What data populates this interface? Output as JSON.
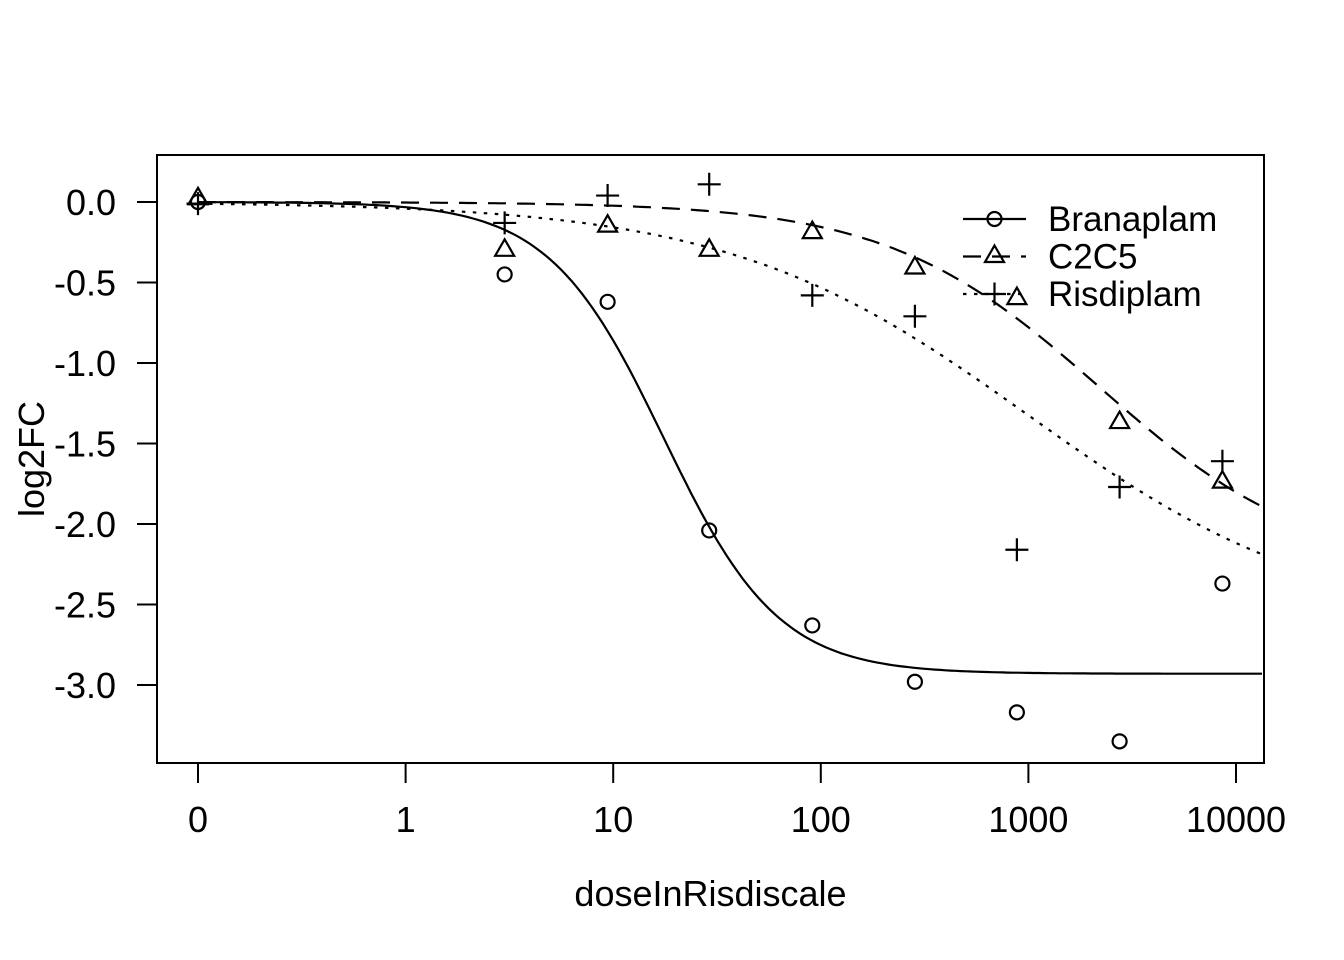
{
  "chart_data": {
    "type": "scatter",
    "title": "",
    "xlabel": "doseInRisdiscale",
    "ylabel": "log2FC",
    "x_scale": "log10 (zero plotted one decade left of 1)",
    "grid": "off",
    "x_ticks": {
      "labels": [
        "0",
        "1",
        "10",
        "100",
        "1000",
        "10000"
      ],
      "doses": [
        0,
        1,
        10,
        100,
        1000,
        10000
      ]
    },
    "y_ticks": {
      "labels": [
        "0.0",
        "-0.5",
        "-1.0",
        "-1.5",
        "-2.0",
        "-2.5",
        "-3.0"
      ],
      "values": [
        0,
        -0.5,
        -1.0,
        -1.5,
        -2.0,
        -2.5,
        -3.0
      ]
    },
    "ylim": [
      -3.48,
      0.29
    ],
    "xlim_log_positions": [
      -0.2,
      5.135
    ],
    "doses": [
      0,
      3,
      9.4,
      29,
      91,
      284,
      880,
      2750,
      8600
    ],
    "series": [
      {
        "name": "Branaplam",
        "marker": "circle",
        "line": "solid",
        "values": [
          0.0,
          -0.45,
          -0.62,
          -2.04,
          -2.63,
          -2.98,
          -3.17,
          -3.35,
          -2.37
        ],
        "fit": {
          "model": "4PL",
          "top": 0,
          "bottom": -2.93,
          "ec50": 17.5,
          "hill": 1.57
        }
      },
      {
        "name": "C2C5",
        "marker": "triangle",
        "line": "dashed",
        "values": [
          0.02,
          -0.3,
          -0.15,
          -0.3,
          -0.19,
          -0.41,
          -0.6,
          -1.37,
          -1.74
        ],
        "fit": {
          "model": "4PL",
          "top": 0,
          "bottom": -2.3,
          "ec50": 2200,
          "hill": 0.85
        }
      },
      {
        "name": "Risdiplam",
        "marker": "plus",
        "line": "dotted",
        "values": [
          -0.01,
          -0.13,
          0.04,
          0.11,
          -0.58,
          -0.71,
          -2.16,
          -1.77,
          -1.61
        ],
        "fit": {
          "model": "4PL",
          "top": 0,
          "bottom": -2.65,
          "ec50": 1000,
          "hill": 0.6
        }
      }
    ],
    "legend": {
      "position": "top-right",
      "entries": [
        "Branaplam",
        "C2C5",
        "Risdiplam"
      ]
    },
    "colors": {
      "foreground": "#000000",
      "background": "#ffffff"
    }
  }
}
